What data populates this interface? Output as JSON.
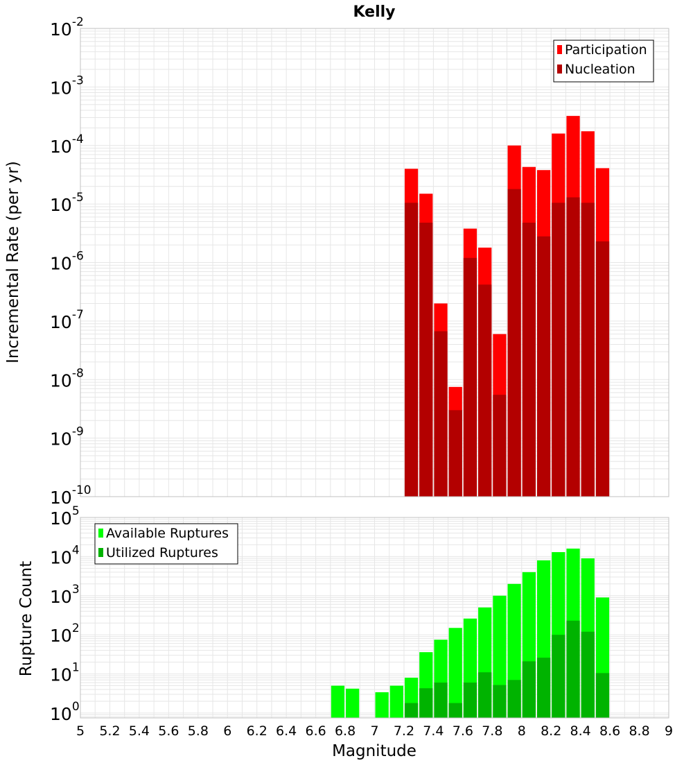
{
  "title": "Kelly",
  "colors": {
    "participation": "#ff0000",
    "nucleation": "#b30000",
    "available": "#00ff00",
    "utilized": "#00b300",
    "grid": "#e6e6e6",
    "frame": "#c0c0c0"
  },
  "chart_data": [
    {
      "type": "bar",
      "scale": "log",
      "ylabel": "Incremental Rate (per yr)",
      "ylim": [
        1e-10,
        0.01
      ],
      "y_ticks": [
        {
          "base": "10",
          "exp": "-10"
        },
        {
          "base": "10",
          "exp": "-9"
        },
        {
          "base": "10",
          "exp": "-8"
        },
        {
          "base": "10",
          "exp": "-7"
        },
        {
          "base": "10",
          "exp": "-6"
        },
        {
          "base": "10",
          "exp": "-5"
        },
        {
          "base": "10",
          "exp": "-4"
        },
        {
          "base": "10",
          "exp": "-3"
        },
        {
          "base": "10",
          "exp": "-2"
        }
      ],
      "legend_placement": "top-right",
      "x": [
        7.25,
        7.35,
        7.45,
        7.55,
        7.65,
        7.75,
        7.85,
        7.95,
        8.05,
        8.15,
        8.25,
        8.35,
        8.45,
        8.55
      ],
      "series": [
        {
          "name": "Participation",
          "values": [
            4e-05,
            1.5e-05,
            2e-07,
            7.5e-09,
            3.8e-06,
            1.8e-06,
            6e-08,
            0.0001,
            4.3e-05,
            3.8e-05,
            0.00016,
            0.00032,
            0.000175,
            4.1e-05
          ]
        },
        {
          "name": "Nucleation",
          "values": [
            1.05e-05,
            4.8e-06,
            6.7e-08,
            3e-09,
            1.2e-06,
            4.2e-07,
            5.5e-09,
            1.8e-05,
            4.8e-06,
            2.8e-06,
            1.05e-05,
            1.3e-05,
            1.05e-05,
            2.3e-06
          ]
        }
      ]
    },
    {
      "type": "bar",
      "scale": "log",
      "ylabel": "Rupture Count",
      "xlabel": "Magnitude",
      "ylim": [
        0.75,
        100000
      ],
      "y_ticks": [
        {
          "base": "10",
          "exp": "0"
        },
        {
          "base": "10",
          "exp": "1"
        },
        {
          "base": "10",
          "exp": "2"
        },
        {
          "base": "10",
          "exp": "3"
        },
        {
          "base": "10",
          "exp": "4"
        },
        {
          "base": "10",
          "exp": "5"
        }
      ],
      "xlim": [
        5,
        9
      ],
      "x_ticks": [
        "5",
        "5.2",
        "5.4",
        "5.6",
        "5.8",
        "6",
        "6.2",
        "6.4",
        "6.6",
        "6.8",
        "7",
        "7.2",
        "7.4",
        "7.6",
        "7.8",
        "8",
        "8.2",
        "8.4",
        "8.6",
        "8.8",
        "9"
      ],
      "legend_placement": "top-left",
      "x": [
        6.75,
        6.85,
        7.05,
        7.15,
        7.25,
        7.35,
        7.45,
        7.55,
        7.65,
        7.75,
        7.85,
        7.95,
        8.05,
        8.15,
        8.25,
        8.35,
        8.45,
        8.55
      ],
      "series": [
        {
          "name": "Available Ruptures",
          "values": [
            5,
            4.2,
            3.4,
            5,
            8,
            36,
            75,
            150,
            260,
            500,
            1000,
            2000,
            4000,
            8000,
            13000,
            16000,
            9000,
            900
          ]
        },
        {
          "name": "Utilized Ruptures",
          "values": [
            null,
            null,
            null,
            null,
            1.8,
            4.3,
            6,
            1.8,
            6,
            11,
            5.2,
            7,
            21,
            26,
            100,
            230,
            120,
            10.5
          ]
        }
      ]
    }
  ]
}
